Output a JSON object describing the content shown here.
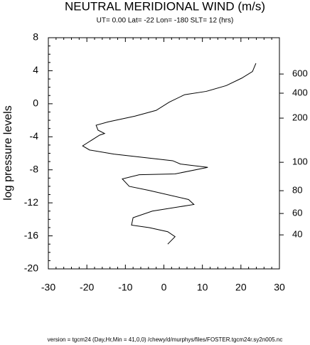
{
  "chart_data": {
    "type": "line",
    "title": "NEUTRAL MERIDIONAL WIND (m/s)",
    "subtitle": "UT=  0.00 Lat= -22 Lon= -180 SLT= 12 (hrs)",
    "y_label": "log pressure levels",
    "footer": "version = tgcm24  (Day,Hr,Min = 41,0,0) /chewy/d/murphys/files/FOSTER.tgcm24r.sy2n005.nc",
    "xlim": [
      -30,
      30
    ],
    "xticks": [
      -30,
      -20,
      -10,
      0,
      10,
      20,
      30
    ],
    "ylim": [
      -20,
      8
    ],
    "yticks": [
      -20,
      -16,
      -12,
      -8,
      -4,
      0,
      4,
      8
    ],
    "right_axis": {
      "levels": [
        600,
        400,
        200,
        100,
        80,
        60,
        40
      ],
      "at_y": [
        3.6,
        1.28,
        -1.74,
        -7.09,
        -10.53,
        -13.29,
        -15.88
      ]
    },
    "series": [
      {
        "color": "#000000",
        "x": [
          23.9,
          23.0,
          20.2,
          16.2,
          11.0,
          5.4,
          1.4,
          -2.0,
          -7.5,
          -14.5,
          -17.6,
          -17.1,
          -15.4,
          -16.7,
          -21.1,
          -19.3,
          -13.0,
          2.3,
          4.3,
          11.4,
          2.9,
          -6.4,
          -10.8,
          -9.0,
          -3.8,
          6.4,
          7.8,
          -3.0,
          -8.0,
          -8.4,
          -3.8,
          1.0,
          2.9,
          1.0
        ],
        "values": [
          4.9,
          3.9,
          3.1,
          2.2,
          1.5,
          1.1,
          0.2,
          -0.8,
          -1.5,
          -2.2,
          -2.6,
          -3.2,
          -3.6,
          -3.8,
          -5.1,
          -5.6,
          -6.1,
          -6.9,
          -7.3,
          -7.7,
          -8.5,
          -8.6,
          -9.1,
          -10.0,
          -10.5,
          -11.6,
          -12.2,
          -13.0,
          -13.8,
          -14.7,
          -15.0,
          -15.5,
          -16.1,
          -17.0
        ]
      }
    ]
  }
}
